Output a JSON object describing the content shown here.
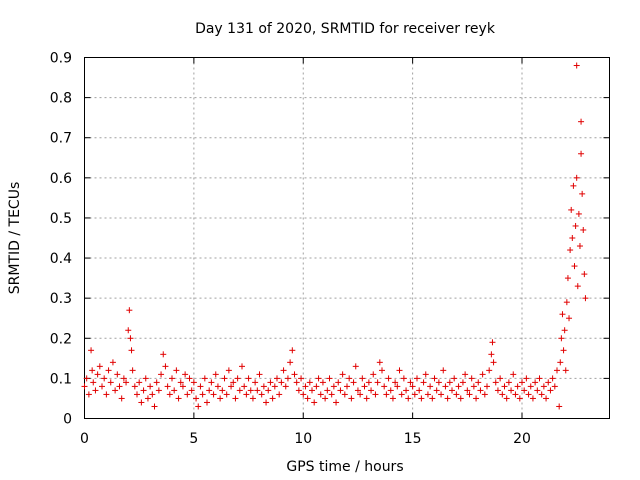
{
  "chart_data": {
    "type": "scatter",
    "title": "Day 131 of 2020, SRMTID for receiver reyk",
    "xlabel": "GPS time / hours",
    "ylabel": "SRMTID / TECUs",
    "xlim": [
      0,
      24
    ],
    "ylim": [
      0,
      0.9
    ],
    "xticks": [
      0,
      5,
      10,
      15,
      20
    ],
    "xtick_labels": [
      "0",
      "5",
      "10",
      "15",
      "20"
    ],
    "yticks": [
      0,
      0.1,
      0.2,
      0.3,
      0.4,
      0.5,
      0.6,
      0.7,
      0.8,
      0.9
    ],
    "ytick_labels": [
      "0",
      "0.1",
      "0.2",
      "0.3",
      "0.4",
      "0.5",
      "0.6",
      "0.7",
      "0.8",
      "0.9"
    ],
    "grid": true,
    "marker": "+",
    "color": "#e00000",
    "series": [
      {
        "name": "SRMTID",
        "points": [
          [
            0.0,
            0.08
          ],
          [
            0.1,
            0.1
          ],
          [
            0.2,
            0.06
          ],
          [
            0.3,
            0.17
          ],
          [
            0.35,
            0.12
          ],
          [
            0.4,
            0.09
          ],
          [
            0.5,
            0.07
          ],
          [
            0.6,
            0.11
          ],
          [
            0.7,
            0.13
          ],
          [
            0.8,
            0.08
          ],
          [
            0.9,
            0.1
          ],
          [
            1.0,
            0.06
          ],
          [
            1.1,
            0.12
          ],
          [
            1.2,
            0.09
          ],
          [
            1.3,
            0.14
          ],
          [
            1.4,
            0.07
          ],
          [
            1.5,
            0.11
          ],
          [
            1.6,
            0.08
          ],
          [
            1.7,
            0.05
          ],
          [
            1.8,
            0.1
          ],
          [
            1.9,
            0.09
          ],
          [
            2.0,
            0.22
          ],
          [
            2.05,
            0.27
          ],
          [
            2.1,
            0.2
          ],
          [
            2.15,
            0.17
          ],
          [
            2.2,
            0.12
          ],
          [
            2.3,
            0.08
          ],
          [
            2.4,
            0.06
          ],
          [
            2.5,
            0.09
          ],
          [
            2.6,
            0.04
          ],
          [
            2.7,
            0.07
          ],
          [
            2.8,
            0.1
          ],
          [
            2.9,
            0.05
          ],
          [
            3.0,
            0.08
          ],
          [
            3.1,
            0.06
          ],
          [
            3.2,
            0.03
          ],
          [
            3.3,
            0.09
          ],
          [
            3.4,
            0.07
          ],
          [
            3.5,
            0.11
          ],
          [
            3.6,
            0.16
          ],
          [
            3.7,
            0.13
          ],
          [
            3.8,
            0.08
          ],
          [
            3.9,
            0.06
          ],
          [
            4.0,
            0.1
          ],
          [
            4.1,
            0.07
          ],
          [
            4.2,
            0.12
          ],
          [
            4.3,
            0.05
          ],
          [
            4.4,
            0.09
          ],
          [
            4.5,
            0.08
          ],
          [
            4.6,
            0.11
          ],
          [
            4.7,
            0.06
          ],
          [
            4.8,
            0.1
          ],
          [
            4.9,
            0.07
          ],
          [
            5.0,
            0.09
          ],
          [
            5.1,
            0.05
          ],
          [
            5.2,
            0.03
          ],
          [
            5.3,
            0.08
          ],
          [
            5.4,
            0.06
          ],
          [
            5.5,
            0.1
          ],
          [
            5.6,
            0.04
          ],
          [
            5.7,
            0.07
          ],
          [
            5.8,
            0.09
          ],
          [
            5.9,
            0.06
          ],
          [
            6.0,
            0.11
          ],
          [
            6.1,
            0.08
          ],
          [
            6.2,
            0.05
          ],
          [
            6.3,
            0.07
          ],
          [
            6.4,
            0.1
          ],
          [
            6.5,
            0.06
          ],
          [
            6.6,
            0.12
          ],
          [
            6.7,
            0.08
          ],
          [
            6.8,
            0.09
          ],
          [
            6.9,
            0.05
          ],
          [
            7.0,
            0.1
          ],
          [
            7.1,
            0.07
          ],
          [
            7.2,
            0.13
          ],
          [
            7.3,
            0.08
          ],
          [
            7.4,
            0.06
          ],
          [
            7.5,
            0.1
          ],
          [
            7.6,
            0.07
          ],
          [
            7.7,
            0.05
          ],
          [
            7.8,
            0.09
          ],
          [
            7.9,
            0.07
          ],
          [
            8.0,
            0.11
          ],
          [
            8.1,
            0.06
          ],
          [
            8.2,
            0.08
          ],
          [
            8.3,
            0.04
          ],
          [
            8.4,
            0.07
          ],
          [
            8.5,
            0.09
          ],
          [
            8.6,
            0.05
          ],
          [
            8.7,
            0.08
          ],
          [
            8.8,
            0.1
          ],
          [
            8.9,
            0.06
          ],
          [
            9.0,
            0.09
          ],
          [
            9.1,
            0.12
          ],
          [
            9.2,
            0.08
          ],
          [
            9.3,
            0.1
          ],
          [
            9.4,
            0.14
          ],
          [
            9.5,
            0.17
          ],
          [
            9.6,
            0.11
          ],
          [
            9.7,
            0.09
          ],
          [
            9.8,
            0.07
          ],
          [
            9.9,
            0.1
          ],
          [
            10.0,
            0.06
          ],
          [
            10.1,
            0.08
          ],
          [
            10.2,
            0.05
          ],
          [
            10.3,
            0.09
          ],
          [
            10.4,
            0.07
          ],
          [
            10.5,
            0.04
          ],
          [
            10.6,
            0.08
          ],
          [
            10.7,
            0.1
          ],
          [
            10.8,
            0.06
          ],
          [
            10.9,
            0.09
          ],
          [
            11.0,
            0.05
          ],
          [
            11.1,
            0.07
          ],
          [
            11.2,
            0.1
          ],
          [
            11.3,
            0.06
          ],
          [
            11.4,
            0.08
          ],
          [
            11.5,
            0.04
          ],
          [
            11.6,
            0.09
          ],
          [
            11.7,
            0.07
          ],
          [
            11.8,
            0.11
          ],
          [
            11.9,
            0.06
          ],
          [
            12.0,
            0.08
          ],
          [
            12.1,
            0.1
          ],
          [
            12.2,
            0.05
          ],
          [
            12.3,
            0.09
          ],
          [
            12.4,
            0.13
          ],
          [
            12.5,
            0.07
          ],
          [
            12.6,
            0.06
          ],
          [
            12.7,
            0.1
          ],
          [
            12.8,
            0.08
          ],
          [
            12.9,
            0.05
          ],
          [
            13.0,
            0.09
          ],
          [
            13.1,
            0.07
          ],
          [
            13.2,
            0.11
          ],
          [
            13.3,
            0.06
          ],
          [
            13.4,
            0.09
          ],
          [
            13.5,
            0.14
          ],
          [
            13.6,
            0.12
          ],
          [
            13.7,
            0.08
          ],
          [
            13.8,
            0.06
          ],
          [
            13.9,
            0.1
          ],
          [
            14.0,
            0.07
          ],
          [
            14.1,
            0.05
          ],
          [
            14.2,
            0.09
          ],
          [
            14.3,
            0.08
          ],
          [
            14.4,
            0.12
          ],
          [
            14.5,
            0.06
          ],
          [
            14.6,
            0.1
          ],
          [
            14.7,
            0.07
          ],
          [
            14.8,
            0.05
          ],
          [
            14.9,
            0.09
          ],
          [
            15.0,
            0.08
          ],
          [
            15.1,
            0.06
          ],
          [
            15.2,
            0.1
          ],
          [
            15.3,
            0.07
          ],
          [
            15.4,
            0.05
          ],
          [
            15.5,
            0.09
          ],
          [
            15.6,
            0.11
          ],
          [
            15.7,
            0.06
          ],
          [
            15.8,
            0.08
          ],
          [
            15.9,
            0.05
          ],
          [
            16.0,
            0.1
          ],
          [
            16.1,
            0.07
          ],
          [
            16.2,
            0.09
          ],
          [
            16.3,
            0.06
          ],
          [
            16.4,
            0.12
          ],
          [
            16.5,
            0.08
          ],
          [
            16.6,
            0.05
          ],
          [
            16.7,
            0.09
          ],
          [
            16.8,
            0.07
          ],
          [
            16.9,
            0.1
          ],
          [
            17.0,
            0.06
          ],
          [
            17.1,
            0.08
          ],
          [
            17.2,
            0.05
          ],
          [
            17.3,
            0.09
          ],
          [
            17.4,
            0.11
          ],
          [
            17.5,
            0.07
          ],
          [
            17.6,
            0.06
          ],
          [
            17.7,
            0.1
          ],
          [
            17.8,
            0.08
          ],
          [
            17.9,
            0.05
          ],
          [
            18.0,
            0.09
          ],
          [
            18.1,
            0.07
          ],
          [
            18.2,
            0.11
          ],
          [
            18.3,
            0.06
          ],
          [
            18.4,
            0.08
          ],
          [
            18.5,
            0.12
          ],
          [
            18.6,
            0.16
          ],
          [
            18.65,
            0.19
          ],
          [
            18.7,
            0.14
          ],
          [
            18.8,
            0.09
          ],
          [
            18.9,
            0.07
          ],
          [
            19.0,
            0.1
          ],
          [
            19.1,
            0.06
          ],
          [
            19.2,
            0.08
          ],
          [
            19.3,
            0.05
          ],
          [
            19.4,
            0.09
          ],
          [
            19.5,
            0.07
          ],
          [
            19.6,
            0.11
          ],
          [
            19.7,
            0.06
          ],
          [
            19.8,
            0.08
          ],
          [
            19.9,
            0.05
          ],
          [
            20.0,
            0.09
          ],
          [
            20.1,
            0.07
          ],
          [
            20.2,
            0.1
          ],
          [
            20.3,
            0.06
          ],
          [
            20.4,
            0.08
          ],
          [
            20.5,
            0.05
          ],
          [
            20.6,
            0.09
          ],
          [
            20.7,
            0.07
          ],
          [
            20.8,
            0.1
          ],
          [
            20.9,
            0.06
          ],
          [
            21.0,
            0.08
          ],
          [
            21.1,
            0.05
          ],
          [
            21.2,
            0.09
          ],
          [
            21.3,
            0.07
          ],
          [
            21.4,
            0.1
          ],
          [
            21.5,
            0.08
          ],
          [
            21.6,
            0.12
          ],
          [
            21.7,
            0.03
          ],
          [
            21.75,
            0.14
          ],
          [
            21.8,
            0.2
          ],
          [
            21.85,
            0.26
          ],
          [
            21.9,
            0.17
          ],
          [
            21.95,
            0.22
          ],
          [
            22.0,
            0.12
          ],
          [
            22.05,
            0.29
          ],
          [
            22.1,
            0.35
          ],
          [
            22.15,
            0.25
          ],
          [
            22.2,
            0.42
          ],
          [
            22.25,
            0.52
          ],
          [
            22.3,
            0.45
          ],
          [
            22.35,
            0.58
          ],
          [
            22.4,
            0.38
          ],
          [
            22.45,
            0.48
          ],
          [
            22.5,
            0.6
          ],
          [
            22.5,
            0.88
          ],
          [
            22.55,
            0.33
          ],
          [
            22.6,
            0.51
          ],
          [
            22.65,
            0.43
          ],
          [
            22.7,
            0.66
          ],
          [
            22.7,
            0.74
          ],
          [
            22.75,
            0.56
          ],
          [
            22.8,
            0.47
          ],
          [
            22.85,
            0.36
          ],
          [
            22.9,
            0.3
          ]
        ]
      }
    ]
  }
}
